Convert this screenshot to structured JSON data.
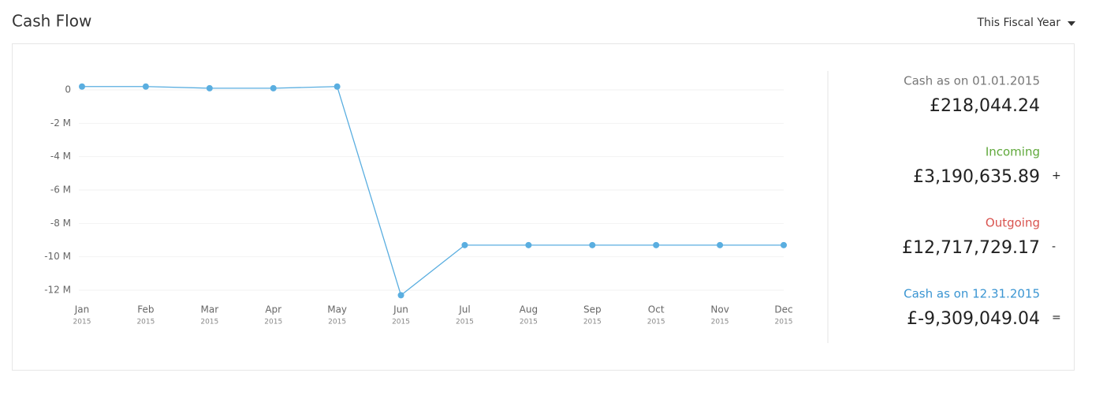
{
  "header": {
    "title": "Cash Flow",
    "period": "This Fiscal Year"
  },
  "chart_data": {
    "type": "line",
    "categories": [
      "Jan",
      "Feb",
      "Mar",
      "Apr",
      "May",
      "Jun",
      "Jul",
      "Aug",
      "Sep",
      "Oct",
      "Nov",
      "Dec"
    ],
    "category_sublabels": [
      "2015",
      "2015",
      "2015",
      "2015",
      "2015",
      "2015",
      "2015",
      "2015",
      "2015",
      "2015",
      "2015",
      "2015"
    ],
    "values": [
      200000,
      200000,
      100000,
      100000,
      200000,
      -12300000,
      -9300000,
      -9300000,
      -9300000,
      -9300000,
      -9300000,
      -9300000
    ],
    "color": "#5aaee0",
    "ylim": [
      -12500000,
      500000
    ],
    "yticks": [
      0,
      {
        "value": -2000000,
        "label": "-2 M"
      },
      {
        "value": -4000000,
        "label": "-4 M"
      },
      {
        "value": -6000000,
        "label": "-6 M"
      },
      {
        "value": -8000000,
        "label": "-8 M"
      },
      {
        "value": -10000000,
        "label": "-10 M"
      },
      {
        "value": -12000000,
        "label": "-12 M"
      }
    ],
    "grid": true
  },
  "summary": [
    {
      "label": "Cash as on 01.01.2015",
      "value": "£218,044.24",
      "color": "#777777"
    },
    {
      "label": "Incoming",
      "value": "£3,190,635.89",
      "sign": "+",
      "color": "#5fa83a"
    },
    {
      "label": "Outgoing",
      "value": "£12,717,729.17",
      "sign": "-",
      "color": "#d9534f"
    },
    {
      "label": "Cash as on 12.31.2015",
      "value": "£-9,309,049.04",
      "sign": "=",
      "color": "#3a95d2"
    }
  ]
}
